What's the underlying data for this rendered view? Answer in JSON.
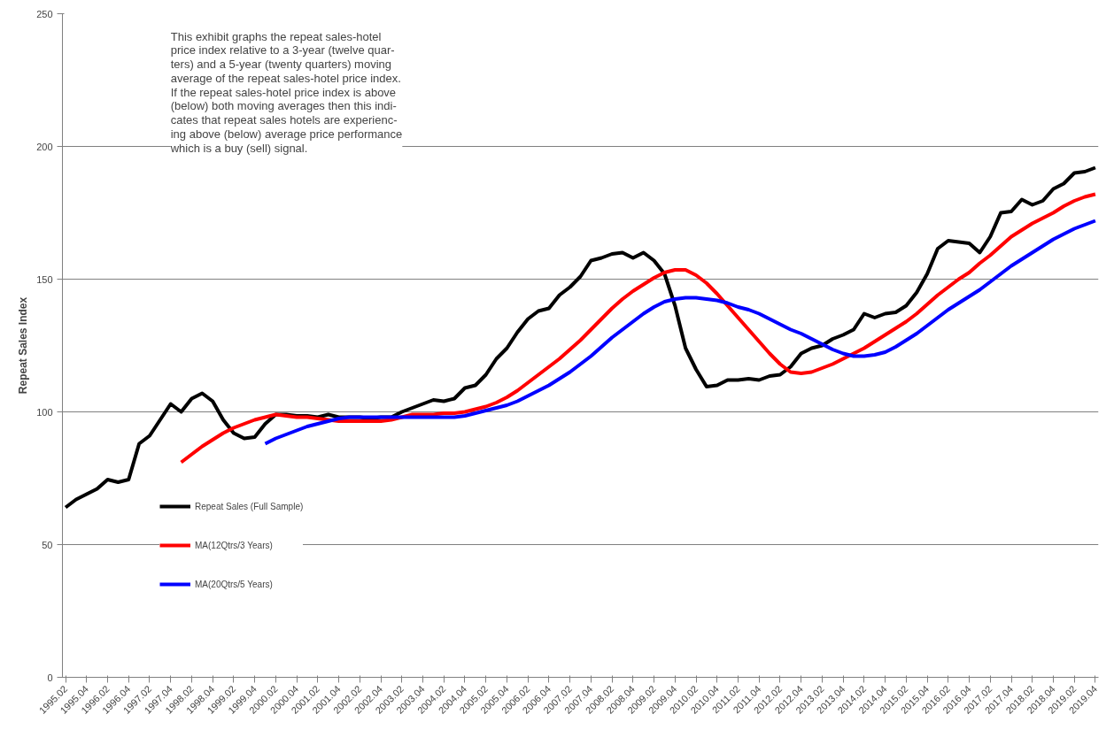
{
  "chart_data": {
    "type": "line",
    "ylabel": "Repeat Sales Index",
    "categories": [
      "1995.02",
      null,
      "1995.04",
      null,
      "1996.02",
      null,
      "1996.04",
      null,
      "1997.02",
      null,
      "1997.04",
      null,
      "1998.02",
      null,
      "1998.04",
      null,
      "1999.02",
      null,
      "1999.04",
      null,
      "2000.02",
      null,
      "2000.04",
      null,
      "2001.02",
      null,
      "2001.04",
      null,
      "2002.02",
      null,
      "2002.04",
      null,
      "2003.02",
      null,
      "2003.04",
      null,
      "2004.02",
      null,
      "2004.04",
      null,
      "2005.02",
      null,
      "2005.04",
      null,
      "2006.02",
      null,
      "2006.04",
      null,
      "2007.02",
      null,
      "2007.04",
      null,
      "2008.02",
      null,
      "2008.04",
      null,
      "2009.02",
      null,
      "2009.04",
      null,
      "2010.02",
      null,
      "2010.04",
      null,
      "2011.02",
      null,
      "2011.04",
      null,
      "2012.02",
      null,
      "2012.04",
      null,
      "2013.02",
      null,
      "2013.04",
      null,
      "2014.02",
      null,
      "2014.04",
      null,
      "2015.02",
      null,
      "2015.04",
      null,
      "2016.02",
      null,
      "2016.04",
      null,
      "2017.02",
      null,
      "2017.04",
      null,
      "2018.02",
      null,
      "2018.04",
      null,
      "2019.02",
      null,
      "2019.04"
    ],
    "series": [
      {
        "name": "Repeat Sales (Full Sample)",
        "color": "#000000",
        "values": [
          64,
          67,
          69,
          71,
          74.5,
          73.5,
          74.5,
          88,
          91,
          97,
          103,
          100,
          105,
          107,
          104,
          97,
          92,
          90,
          90.5,
          95.5,
          99,
          99,
          98.5,
          98.5,
          98,
          99,
          98,
          98,
          98,
          97.5,
          98,
          98,
          100,
          101.5,
          103,
          104.5,
          104,
          105,
          109,
          110,
          114,
          120,
          124,
          130,
          135,
          138,
          139,
          144,
          147,
          151,
          157,
          158,
          159.5,
          160,
          158,
          160,
          157,
          152,
          140,
          124,
          116,
          109.5,
          110,
          112,
          112,
          112.5,
          112,
          113.5,
          114,
          117,
          122,
          124,
          125,
          127.5,
          129,
          131,
          137,
          135.5,
          137,
          137.5,
          140,
          145,
          152,
          161.5,
          164.5,
          164,
          163.5,
          160,
          166,
          175,
          175.5,
          180,
          178,
          179.5,
          184,
          186,
          190,
          190.5,
          192
        ]
      },
      {
        "name": "MA(12Qtrs/3 Years)",
        "color": "#ff0000",
        "values": [
          null,
          null,
          null,
          null,
          null,
          null,
          null,
          null,
          null,
          null,
          null,
          81,
          84,
          87,
          89.5,
          92,
          94,
          95.5,
          97,
          98,
          99,
          98.5,
          98,
          98,
          97.5,
          97,
          96.5,
          96.5,
          96.5,
          96.5,
          96.5,
          97,
          98,
          99,
          99,
          99,
          99.5,
          99.5,
          100,
          101,
          102,
          103.5,
          105.5,
          108,
          111,
          114,
          117,
          120,
          123.5,
          127,
          131,
          135,
          139,
          142.5,
          145.5,
          148,
          150.5,
          152.5,
          153.5,
          153.5,
          151.5,
          148.5,
          144.5,
          140,
          135.5,
          131,
          126.5,
          122,
          118,
          115,
          114.5,
          115,
          116.5,
          118,
          120,
          122,
          124,
          126.5,
          129,
          131.5,
          134,
          137,
          140.5,
          144,
          147,
          150,
          152.5,
          156,
          159,
          162.5,
          166,
          168.5,
          171,
          173,
          175,
          177.5,
          179.5,
          181,
          182
        ]
      },
      {
        "name": "MA(20Qtrs/5 Years)",
        "color": "#0000ff",
        "values": [
          null,
          null,
          null,
          null,
          null,
          null,
          null,
          null,
          null,
          null,
          null,
          null,
          null,
          null,
          null,
          null,
          null,
          null,
          null,
          88,
          90,
          91.5,
          93,
          94.5,
          95.5,
          96.5,
          97.5,
          98,
          98,
          98,
          98,
          98,
          98,
          98,
          98,
          98,
          98,
          98,
          98.5,
          99.5,
          100.5,
          101.5,
          102.5,
          104,
          106,
          108,
          110,
          112.5,
          115,
          118,
          121,
          124.5,
          128,
          131,
          134,
          137,
          139.5,
          141.5,
          142.5,
          143,
          143,
          142.5,
          142,
          141,
          139.5,
          138.5,
          137,
          135,
          133,
          131,
          129.5,
          127.5,
          125.5,
          123.5,
          122,
          121,
          121,
          121.5,
          122.5,
          124.5,
          127,
          129.5,
          132.5,
          135.5,
          138.5,
          141,
          143.5,
          146,
          149,
          152,
          155,
          157.5,
          160,
          162.5,
          165,
          167,
          169,
          170.5,
          172
        ]
      }
    ],
    "ylim": [
      0,
      250
    ],
    "yticks": [
      0,
      50,
      100,
      150,
      200,
      250
    ],
    "grid": "y",
    "legend": "left",
    "marker": "none",
    "line_style": "solid",
    "annotations": [
      "This exhibit graphs the repeat sales-hotel\nprice index relative to a 3-year (twelve quar-\nters) and a 5-year (twenty quarters) moving\naverage of the repeat sales-hotel price index.\nIf the repeat sales-hotel price index is above\n(below) both moving averages then this indi-\ncates that repeat sales hotels are experienc-\ning above (below) average price performance\nwhich is a buy (sell) signal."
    ]
  }
}
